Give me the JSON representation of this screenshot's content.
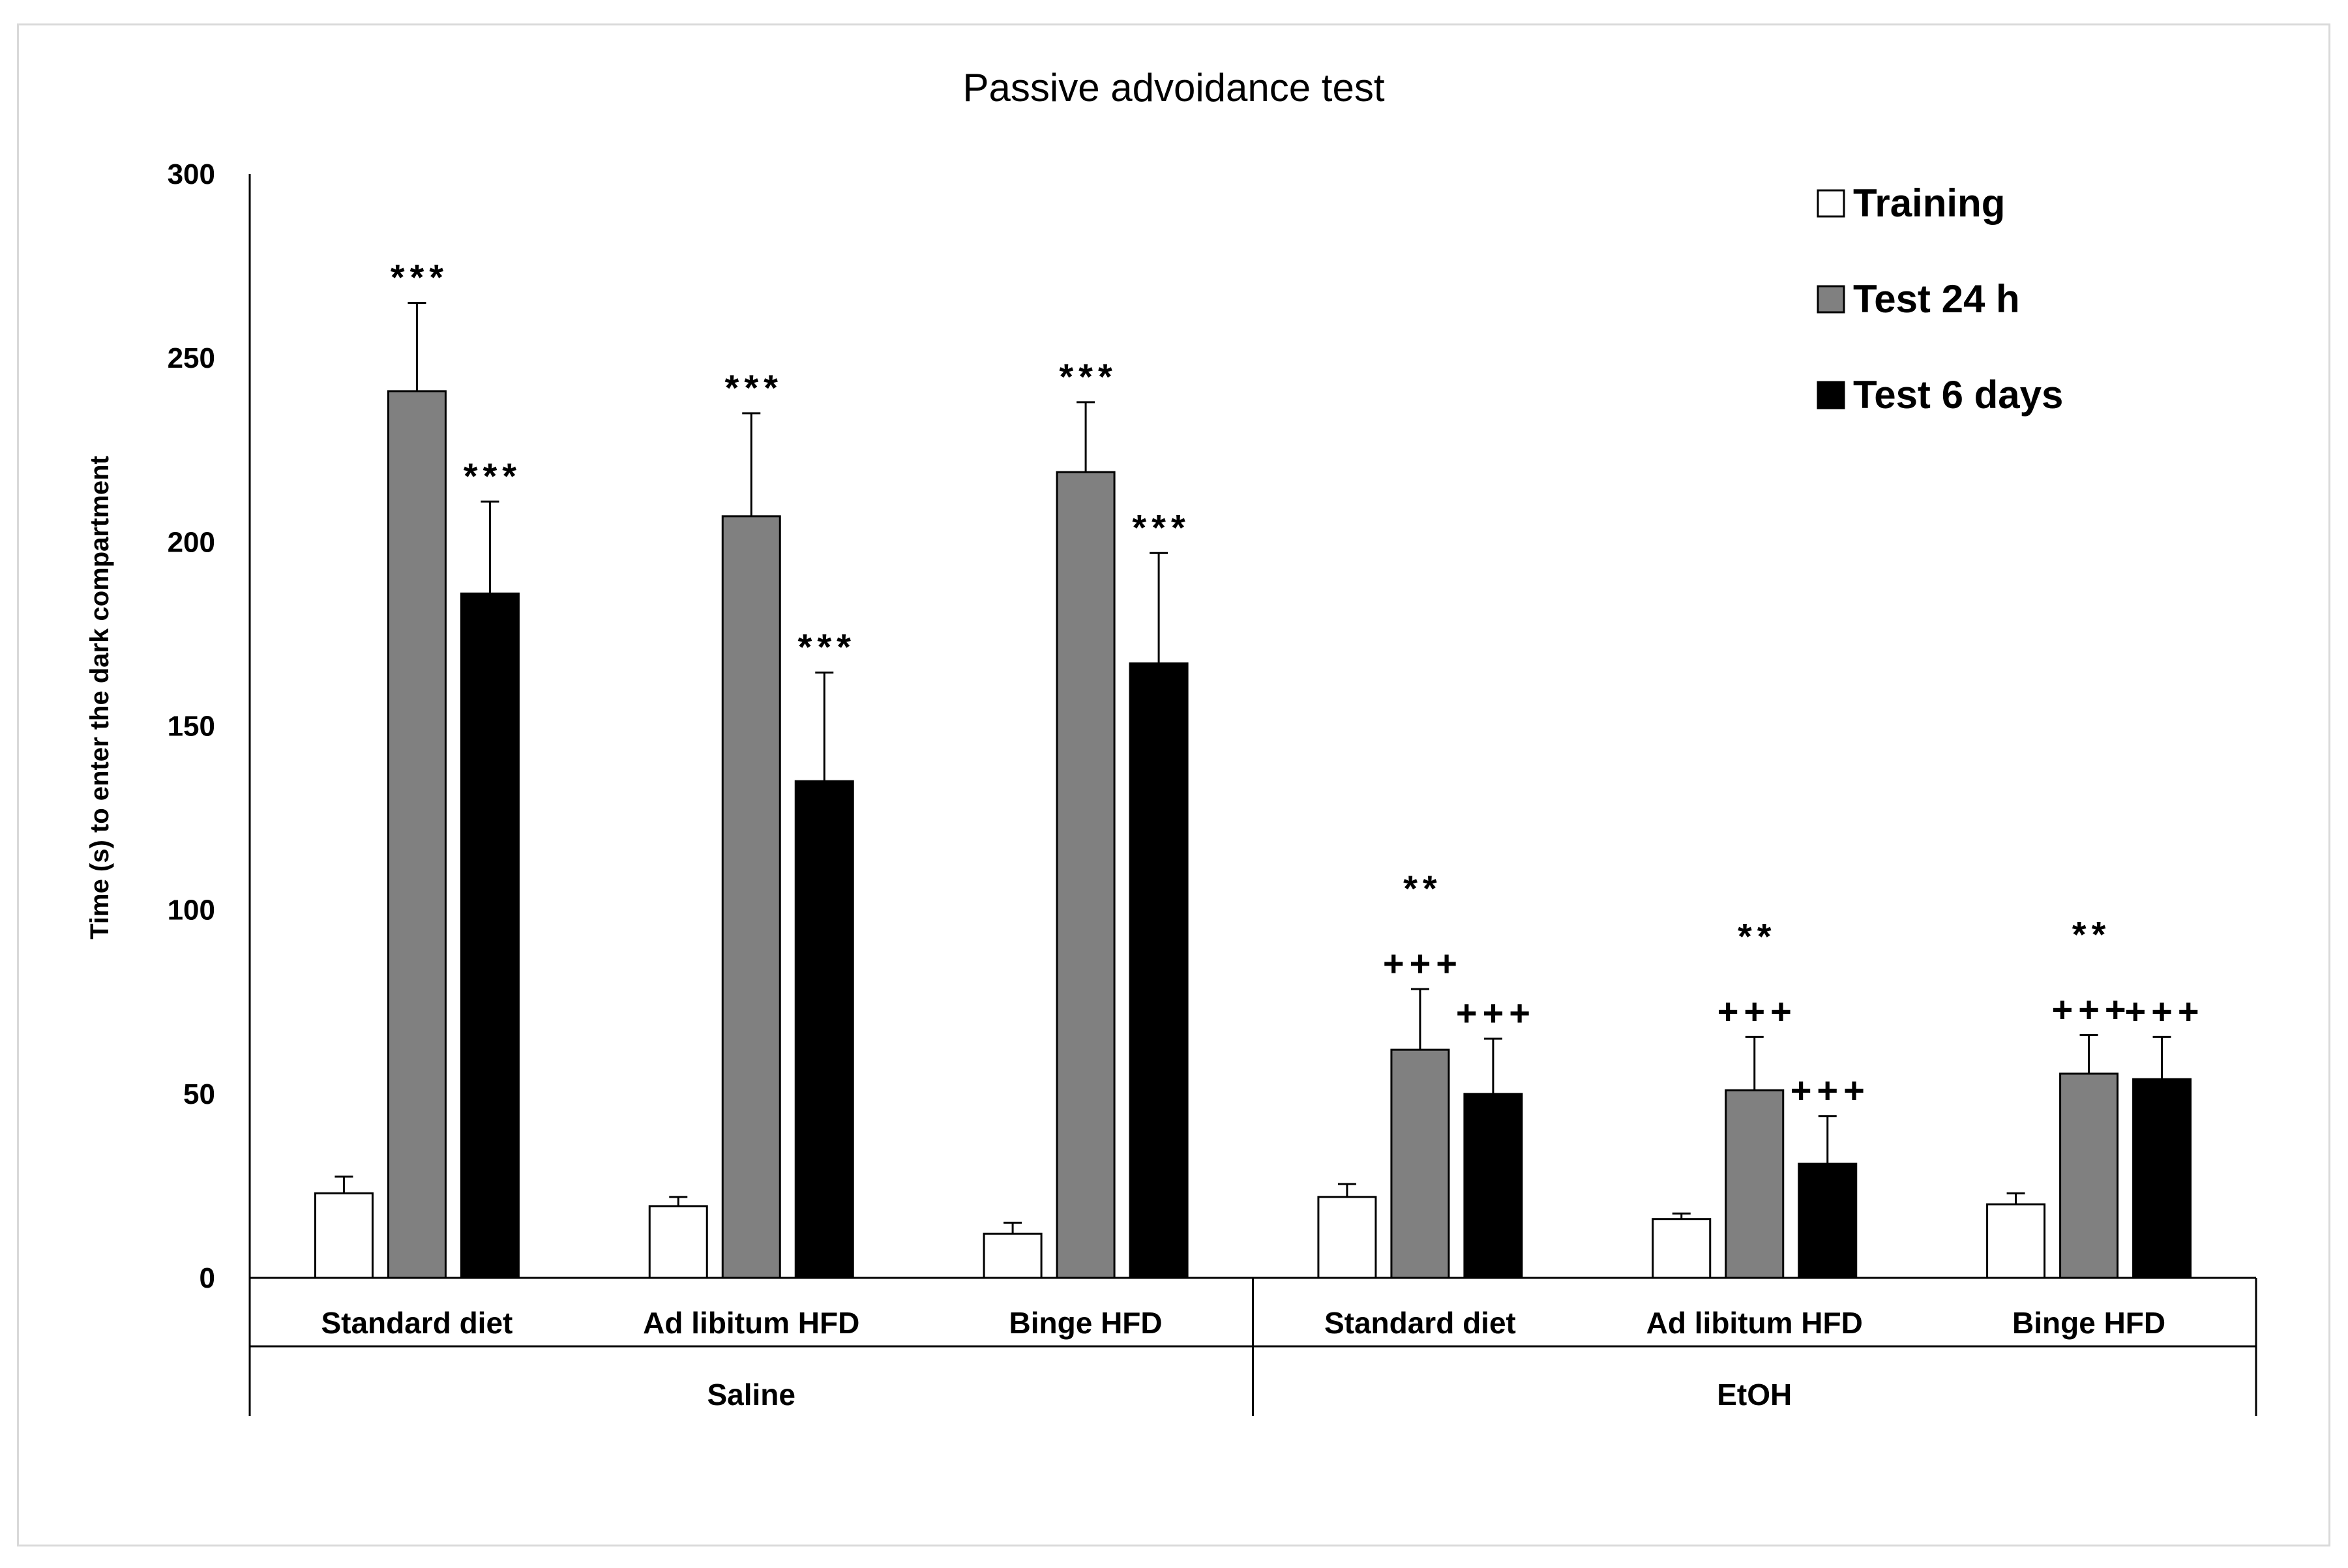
{
  "chart_data": {
    "type": "bar",
    "title": "Passive advoidance test",
    "ylabel": "Time (s) to enter the dark compartment",
    "xlabel": "",
    "ylim": [
      0,
      300
    ],
    "yticks": [
      0,
      50,
      100,
      150,
      200,
      250,
      300
    ],
    "legend_position": "top-right",
    "groups": [
      {
        "label": "Saline",
        "categories": [
          "Standard diet",
          "Ad libitum HFD",
          "Binge HFD"
        ]
      },
      {
        "label": "EtOH",
        "categories": [
          "Standard diet",
          "Ad libitum HFD",
          "Binge HFD"
        ]
      }
    ],
    "categories": [
      "Standard diet",
      "Ad libitum HFD",
      "Binge HFD",
      "Standard diet",
      "Ad libitum HFD",
      "Binge HFD"
    ],
    "series": [
      {
        "name": "Training",
        "color": "#ffffff",
        "values": [
          23,
          19.5,
          12,
          22,
          16,
          20
        ],
        "errors": [
          4.5,
          2.5,
          3,
          3.5,
          1.5,
          3
        ]
      },
      {
        "name": "Test 24 h",
        "color": "#808080",
        "values": [
          241,
          207,
          219,
          62,
          51,
          55.5
        ],
        "errors": [
          24,
          28,
          19,
          16.5,
          14.5,
          10.5
        ]
      },
      {
        "name": "Test 6 days",
        "color": "#000000",
        "values": [
          186,
          135,
          167,
          50,
          31,
          54
        ],
        "errors": [
          25,
          29.5,
          30,
          15,
          13,
          11.5
        ]
      }
    ],
    "annotations": [
      {
        "category": 0,
        "series": 1,
        "lines": [
          "***"
        ]
      },
      {
        "category": 0,
        "series": 2,
        "lines": [
          "***"
        ]
      },
      {
        "category": 1,
        "series": 1,
        "lines": [
          "***"
        ]
      },
      {
        "category": 1,
        "series": 2,
        "lines": [
          "***"
        ]
      },
      {
        "category": 2,
        "series": 1,
        "lines": [
          "***"
        ]
      },
      {
        "category": 2,
        "series": 2,
        "lines": [
          "***"
        ]
      },
      {
        "category": 3,
        "series": 1,
        "lines": [
          "**",
          "+++"
        ]
      },
      {
        "category": 3,
        "series": 2,
        "lines": [
          "+++"
        ]
      },
      {
        "category": 4,
        "series": 1,
        "lines": [
          "**",
          "+++"
        ]
      },
      {
        "category": 4,
        "series": 2,
        "lines": [
          "+++"
        ]
      },
      {
        "category": 5,
        "series": 1,
        "lines": [
          "**",
          "+++"
        ]
      },
      {
        "category": 5,
        "series": 2,
        "lines": [
          "+++"
        ]
      }
    ]
  }
}
